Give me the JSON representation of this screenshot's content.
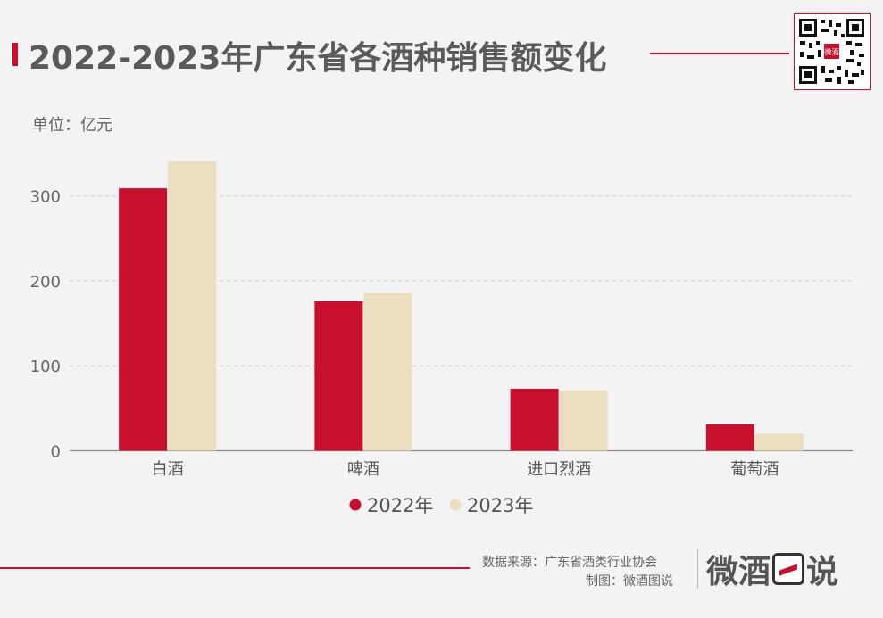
{
  "header": {
    "title": "2022-2023年广东省各酒种销售额变化",
    "unit": "单位：亿元"
  },
  "qr_logo_text": "微酒",
  "chart_data": {
    "type": "bar",
    "categories": [
      "白酒",
      "啤酒",
      "进口烈酒",
      "葡萄酒"
    ],
    "series": [
      {
        "name": "2022年",
        "values": [
          309,
          176,
          73,
          31
        ],
        "color": "#c8102e"
      },
      {
        "name": "2023年",
        "values": [
          341,
          186,
          71,
          20
        ],
        "color": "#ebdfbf"
      }
    ],
    "ylim": [
      0,
      350
    ],
    "yticks": [
      0,
      100,
      200,
      300
    ],
    "grid": true,
    "legend": "bottom-center",
    "xlabel": "",
    "ylabel": ""
  },
  "footer": {
    "source": "数据来源：广东省酒类行业协会",
    "maker": "制图：微酒图说",
    "logo_left": "微酒",
    "logo_right": "说"
  },
  "colors": {
    "accent": "#c8102e",
    "cream": "#ebdfbf",
    "background": "#f3f3f3"
  }
}
